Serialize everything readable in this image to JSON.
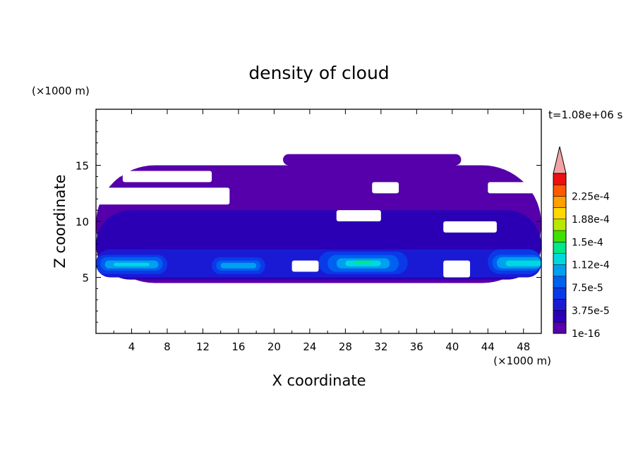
{
  "chart_data": {
    "type": "heatmap",
    "title": "density of cloud",
    "time_label": "t=1.08e+06 s",
    "xlabel": "X coordinate",
    "ylabel": "Z coordinate",
    "x_unit": "(×1000 m)",
    "y_unit": "(×1000 m)",
    "xlim": [
      0,
      50
    ],
    "ylim": [
      0,
      20
    ],
    "x_ticks": [
      4,
      8,
      12,
      16,
      20,
      24,
      28,
      32,
      36,
      40,
      44,
      48
    ],
    "x_tick_labels": [
      "4",
      "8",
      "12",
      "16",
      "20",
      "24",
      "28",
      "32",
      "36",
      "40",
      "44",
      "48"
    ],
    "y_ticks": [
      5,
      10,
      15
    ],
    "y_tick_labels": [
      "5",
      "10",
      "15"
    ],
    "colorbar": {
      "levels": [
        1e-16,
        1.875e-05,
        3.75e-05,
        5.625e-05,
        7.5e-05,
        9.375e-05,
        0.0001125,
        0.00013125,
        0.00015,
        0.00016875,
        0.0001875,
        0.00020625,
        0.000225,
        0.00024375
      ],
      "colors": [
        "#5500aa",
        "#2b00b5",
        "#1a1ad4",
        "#0a3ae8",
        "#0060f0",
        "#00a0f0",
        "#00d8e0",
        "#00e88a",
        "#40e000",
        "#b8e800",
        "#ffd800",
        "#ffa000",
        "#ff5a00",
        "#ee1010"
      ],
      "labels": [
        "1e-16",
        "3.75e-5",
        "7.5e-5",
        "1.12e-4",
        "1.5e-4",
        "1.88e-4",
        "2.25e-4"
      ],
      "label_level_index": [
        0,
        2,
        4,
        6,
        8,
        10,
        12
      ],
      "extend_max_color": "#f3a3a3"
    },
    "regions": [
      {
        "level": 0,
        "x": [
          0,
          50
        ],
        "z": [
          4.5,
          15
        ]
      },
      {
        "level": 0,
        "x": [
          21,
          41
        ],
        "z": [
          15,
          16
        ]
      },
      {
        "level": 1,
        "x": [
          0,
          50
        ],
        "z": [
          4.8,
          11
        ]
      },
      {
        "level": 2,
        "x": [
          0,
          50
        ],
        "z": [
          5,
          7.5
        ]
      },
      {
        "level": 3,
        "x": [
          0,
          8
        ],
        "z": [
          5.3,
          7
        ]
      },
      {
        "level": 4,
        "x": [
          0.5,
          7.5
        ],
        "z": [
          5.6,
          6.8
        ]
      },
      {
        "level": 5,
        "x": [
          1,
          7
        ],
        "z": [
          5.8,
          6.5
        ]
      },
      {
        "level": 6,
        "x": [
          2,
          6
        ],
        "z": [
          6,
          6.3
        ]
      },
      {
        "level": 3,
        "x": [
          13,
          19
        ],
        "z": [
          5.3,
          6.8
        ]
      },
      {
        "level": 4,
        "x": [
          13.5,
          18.5
        ],
        "z": [
          5.6,
          6.5
        ]
      },
      {
        "level": 5,
        "x": [
          14,
          18
        ],
        "z": [
          5.8,
          6.3
        ]
      },
      {
        "level": 3,
        "x": [
          25,
          35
        ],
        "z": [
          5.3,
          7.3
        ]
      },
      {
        "level": 4,
        "x": [
          26,
          34
        ],
        "z": [
          5.5,
          7
        ]
      },
      {
        "level": 5,
        "x": [
          27,
          33
        ],
        "z": [
          5.8,
          6.7
        ]
      },
      {
        "level": 6,
        "x": [
          28,
          32
        ],
        "z": [
          6,
          6.5
        ]
      },
      {
        "level": 7,
        "x": [
          29,
          31
        ],
        "z": [
          6.2,
          6.5
        ]
      },
      {
        "level": 3,
        "x": [
          44,
          50
        ],
        "z": [
          5.3,
          7.5
        ]
      },
      {
        "level": 4,
        "x": [
          44.5,
          50
        ],
        "z": [
          5.6,
          7
        ]
      },
      {
        "level": 5,
        "x": [
          45,
          50
        ],
        "z": [
          5.8,
          6.8
        ]
      },
      {
        "level": 6,
        "x": [
          46,
          50
        ],
        "z": [
          6,
          6.5
        ]
      }
    ],
    "gaps": [
      {
        "x": [
          0,
          3
        ],
        "z": [
          14,
          14.5
        ]
      },
      {
        "x": [
          3,
          13
        ],
        "z": [
          13.5,
          14.5
        ]
      },
      {
        "x": [
          0,
          15
        ],
        "z": [
          11.5,
          13
        ]
      },
      {
        "x": [
          31,
          34
        ],
        "z": [
          12.5,
          13.5
        ]
      },
      {
        "x": [
          44,
          50
        ],
        "z": [
          12.5,
          13.5
        ]
      },
      {
        "x": [
          27,
          32
        ],
        "z": [
          10,
          11
        ]
      },
      {
        "x": [
          39,
          45
        ],
        "z": [
          9,
          10
        ]
      },
      {
        "x": [
          22,
          25
        ],
        "z": [
          5.5,
          6.5
        ]
      },
      {
        "x": [
          39,
          42
        ],
        "z": [
          5,
          6.5
        ]
      }
    ]
  }
}
